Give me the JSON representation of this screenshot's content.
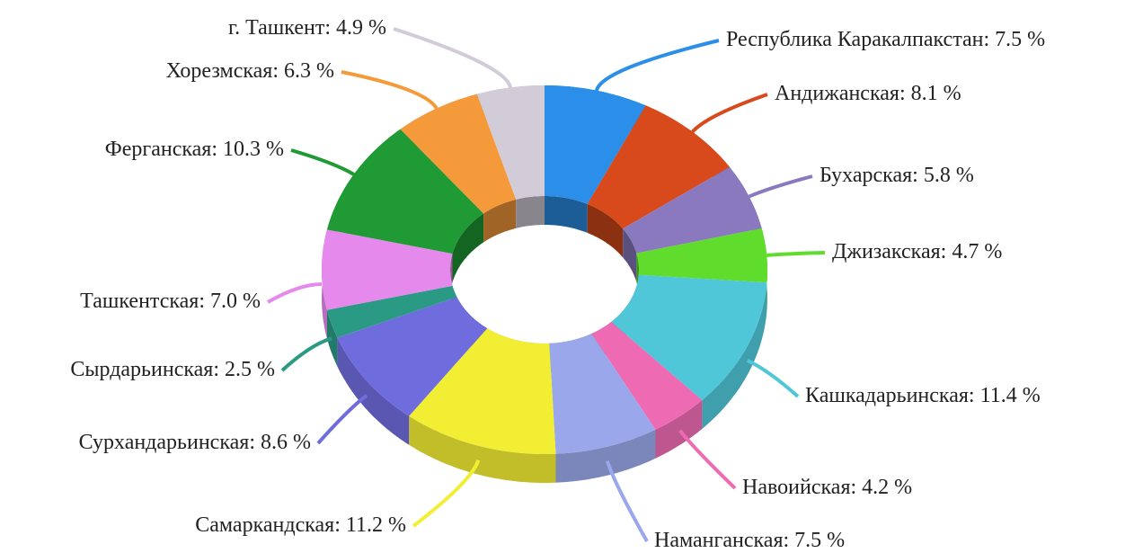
{
  "chart_data": {
    "type": "donut3d",
    "categories": [
      "Республика Каракалпакстан:",
      "Андижанская:",
      "Бухарская:",
      "Джизакская:",
      "Кашкадарьинская:",
      "Навоийская:",
      "Наманганская:",
      "Самаркандская:",
      "Сурхандарьинская:",
      "Сырдарьинская:",
      "Ташкентская:",
      "Ферганская:",
      "Хорезмская:",
      "г. Ташкент:"
    ],
    "values": [
      7.5,
      8.1,
      5.8,
      4.7,
      11.4,
      4.2,
      7.5,
      11.2,
      8.6,
      2.5,
      7.0,
      10.3,
      6.3,
      4.9
    ],
    "value_labels": [
      "7.5 %",
      "8.1 %",
      "5.8 %",
      "4.7 %",
      "11.4 %",
      "4.2 %",
      "7.5 %",
      "11.2 %",
      "8.6 %",
      "2.5 %",
      "7.0 %",
      "10.3 %",
      "6.3 %",
      "4.9 %"
    ],
    "colors": [
      "#2b8ee8",
      "#d84a1b",
      "#8b79c0",
      "#5fdc2c",
      "#50c7d8",
      "#ee6bb3",
      "#9aa7ea",
      "#f2ee34",
      "#6f6ddd",
      "#2a9a84",
      "#e589ec",
      "#1f9a34",
      "#f59a3a",
      "#d2ccd9"
    ]
  }
}
